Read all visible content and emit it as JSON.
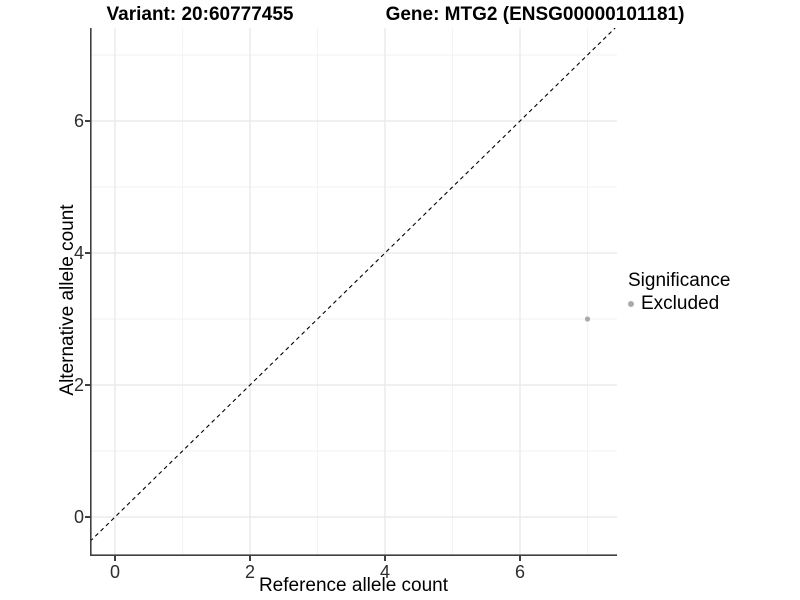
{
  "titles": {
    "left": "Variant: 20:60777455",
    "right": "Gene: MTG2 (ENSG00000101181)"
  },
  "chart_data": {
    "type": "scatter",
    "title": "Variant: 20:60777455 — Gene: MTG2 (ENSG00000101181)",
    "xlabel": "Reference allele count",
    "ylabel": "Alternative allele count",
    "x_ticks": [
      0,
      2,
      4,
      6
    ],
    "y_ticks": [
      0,
      2,
      4,
      6
    ],
    "x_minor_ticks": [
      1,
      3,
      5,
      7
    ],
    "y_minor_ticks": [
      1,
      3,
      5,
      7
    ],
    "xlim": [
      -0.37,
      7.44
    ],
    "ylim": [
      -0.59,
      7.41
    ],
    "grid": "major and minor, light gray, white background",
    "series": [
      {
        "name": "Excluded",
        "points": [
          {
            "x": 7,
            "y": 3
          }
        ],
        "color": "#aaaaaa"
      }
    ],
    "identity_line": {
      "equation": "y = x",
      "style": "dashed",
      "color": "#000000"
    },
    "legend": {
      "title": "Significance",
      "position": "right",
      "items": [
        {
          "label": "Excluded",
          "color": "#aaaaaa"
        }
      ]
    },
    "style": {
      "axis_line_color": "#404040",
      "grid_major_color": "#e8e8e8",
      "grid_minor_color": "#f2f2f2",
      "point_radius_px": 2.6
    }
  }
}
